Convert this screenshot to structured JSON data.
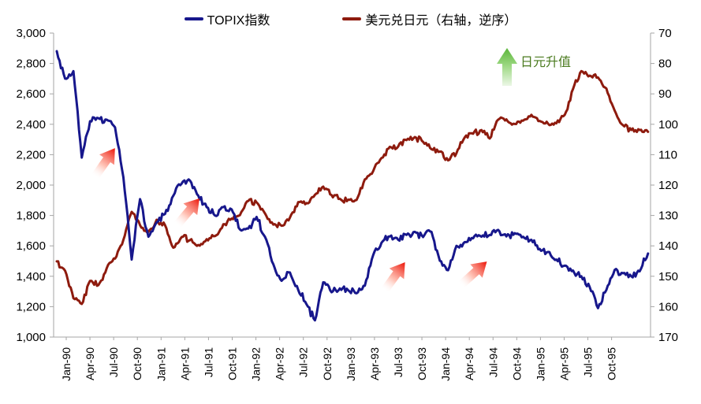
{
  "legend": [
    {
      "label": "TOPIX指数",
      "color": "#17178C"
    },
    {
      "label": "美元兑日元（右轴，逆序）",
      "color": "#8E1B0E"
    }
  ],
  "annotation": {
    "text": "日元升值",
    "text_color": "#4A7A1E",
    "arrow_color_top": "#55B234",
    "arrow_color_mid": "#9AD77F",
    "arrow_color_bottom": "#F2F9EE"
  },
  "rebound_arrow_colors": {
    "head": "#EC1306",
    "mid": "#FFB3A3",
    "tail": "#FFFFFF"
  },
  "axis_color": "#A6A6A6",
  "text_color": "#000000",
  "chart_data": {
    "type": "line",
    "x": [
      "Jan-90",
      "Feb-90",
      "Mar-90",
      "Apr-90",
      "May-90",
      "Jun-90",
      "Jul-90",
      "Aug-90",
      "Sep-90",
      "Oct-90",
      "Nov-90",
      "Dec-90",
      "Jan-91",
      "Feb-91",
      "Mar-91",
      "Apr-91",
      "May-91",
      "Jun-91",
      "Jul-91",
      "Aug-91",
      "Sep-91",
      "Oct-91",
      "Nov-91",
      "Dec-91",
      "Jan-92",
      "Feb-92",
      "Mar-92",
      "Apr-92",
      "May-92",
      "Jun-92",
      "Jul-92",
      "Aug-92",
      "Sep-92",
      "Oct-92",
      "Nov-92",
      "Dec-92",
      "Jan-93",
      "Feb-93",
      "Mar-93",
      "Apr-93",
      "May-93",
      "Jun-93",
      "Jul-93",
      "Aug-93",
      "Sep-93",
      "Oct-93",
      "Nov-93",
      "Dec-93",
      "Jan-94",
      "Feb-94",
      "Mar-94",
      "Apr-94",
      "May-94",
      "Jun-94",
      "Jul-94",
      "Aug-94",
      "Sep-94",
      "Oct-94",
      "Nov-94",
      "Dec-94",
      "Jan-95",
      "Feb-95",
      "Mar-95",
      "Apr-95",
      "May-95",
      "Jun-95",
      "Jul-95",
      "Aug-95",
      "Sep-95",
      "Oct-95",
      "Nov-95",
      "Dec-95"
    ],
    "x_tick_labels": [
      "Jan-90",
      "Apr-90",
      "Jul-90",
      "Oct-90",
      "Jan-91",
      "Apr-91",
      "Jul-91",
      "Oct-91",
      "Jan-92",
      "Apr-92",
      "Jul-92",
      "Oct-92",
      "Jan-93",
      "Apr-93",
      "Jul-93",
      "Oct-93",
      "Jan-94",
      "Apr-94",
      "Jul-94",
      "Oct-94",
      "Jan-95",
      "Apr-95",
      "Jul-95",
      "Oct-95"
    ],
    "series": [
      {
        "name": "TOPIX指数",
        "axis": "left",
        "color": "#17178C",
        "values": [
          2881,
          2700,
          2750,
          2181,
          2420,
          2440,
          2430,
          2380,
          2050,
          1510,
          1908,
          1660,
          1755,
          1810,
          1930,
          2010,
          2029,
          1930,
          1855,
          1800,
          1855,
          1840,
          1708,
          1714,
          1790,
          1660,
          1480,
          1370,
          1425,
          1310,
          1215,
          1110,
          1360,
          1295,
          1320,
          1308,
          1288,
          1338,
          1540,
          1620,
          1662,
          1640,
          1672,
          1692,
          1658,
          1692,
          1502,
          1440,
          1600,
          1625,
          1650,
          1660,
          1672,
          1705,
          1662,
          1684,
          1660,
          1640,
          1580,
          1560,
          1510,
          1470,
          1438,
          1400,
          1330,
          1190,
          1310,
          1442,
          1420,
          1400,
          1432,
          1550
        ]
      },
      {
        "name": "美元兑日元（右轴，逆序）",
        "axis": "right",
        "color": "#8E1B0E",
        "values": [
          145.1,
          148.2,
          157.2,
          159.1,
          151.5,
          152.9,
          147.3,
          144.2,
          138.0,
          128.8,
          133.2,
          135.4,
          131.4,
          133.2,
          140.6,
          137.1,
          138.1,
          139.7,
          137.8,
          136.8,
          132.9,
          131.0,
          129.9,
          125.2,
          125.7,
          129.3,
          133.0,
          133.4,
          130.7,
          125.6,
          125.9,
          123.2,
          120.5,
          123.3,
          124.5,
          124.8,
          124.9,
          118.1,
          115.4,
          111.1,
          107.4,
          107.3,
          105.2,
          104.2,
          105.8,
          108.2,
          109.0,
          111.9,
          109.5,
          104.3,
          103.1,
          101.9,
          104.7,
          98.5,
          98.4,
          99.9,
          98.8,
          96.9,
          98.9,
          99.8,
          99.7,
          96.9,
          88.4,
          82.5,
          84.0,
          84.6,
          88.2,
          95.5,
          100.3,
          101.9,
          101.9,
          102.5
        ]
      }
    ],
    "left_axis": {
      "min": 1000,
      "max": 3000,
      "step": 200,
      "ticks": [
        "3,000",
        "2,800",
        "2,600",
        "2,400",
        "2,200",
        "2,000",
        "1,800",
        "1,600",
        "1,400",
        "1,200",
        "1,000"
      ]
    },
    "right_axis": {
      "min": 70,
      "max": 170,
      "step": 10,
      "inverted": true,
      "ticks": [
        "70",
        "80",
        "90",
        "100",
        "110",
        "120",
        "130",
        "140",
        "150",
        "160",
        "170"
      ]
    },
    "grid": false,
    "legend_position": "top",
    "rebound_arrows": [
      {
        "x_month": 5.8,
        "value": 2150,
        "angle": 35
      },
      {
        "x_month": 15.8,
        "value": 1825,
        "angle": 40
      },
      {
        "x_month": 40.6,
        "value": 1400,
        "angle": 36
      },
      {
        "x_month": 50.1,
        "value": 1420,
        "angle": 48
      }
    ]
  }
}
